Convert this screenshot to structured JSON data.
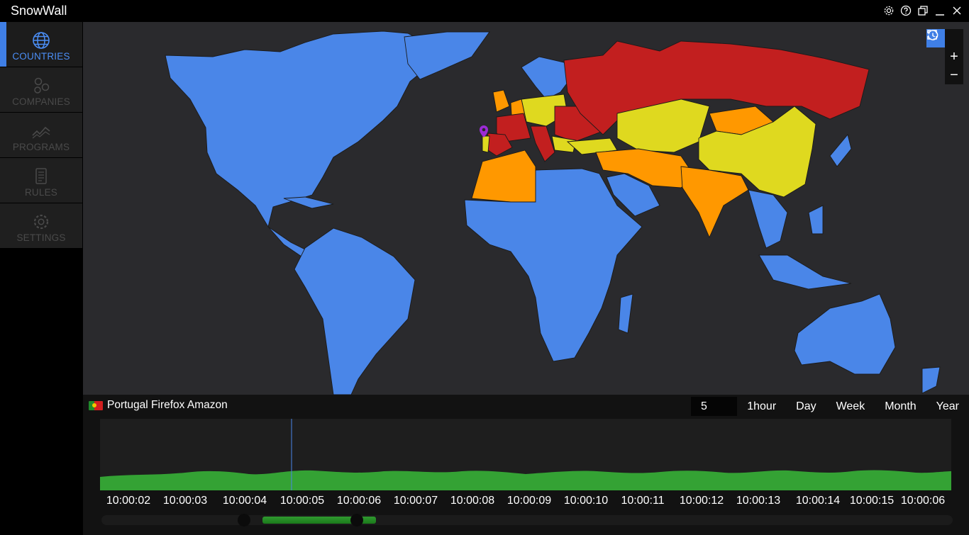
{
  "app": {
    "title": "SnowWall"
  },
  "window_controls": [
    "gear-icon",
    "help-icon",
    "restore-icon",
    "minimize-icon",
    "close-icon"
  ],
  "sidebar": {
    "items": [
      {
        "label": "COUNTRIES",
        "icon": "globe-icon",
        "active": true
      },
      {
        "label": "COMPANIES",
        "icon": "companies-icon",
        "active": false
      },
      {
        "label": "PROGRAMS",
        "icon": "programs-icon",
        "active": false
      },
      {
        "label": "RULES",
        "icon": "rules-icon",
        "active": false
      },
      {
        "label": "SETTINGS",
        "icon": "settings-icon",
        "active": false
      }
    ]
  },
  "map": {
    "controls": {
      "history": "history-icon",
      "fullscreen": "fullscreen-icon",
      "zoom_in": "+",
      "zoom_out": "−"
    },
    "colors": {
      "background": "#2a2a2d",
      "low": "#4a86e8",
      "medium": "#dfd91f",
      "high": "#ff9800",
      "very_high": "#c21f1f",
      "marker": "#9c2bd6"
    }
  },
  "selection": {
    "label": "Portugal Firefox Amazon",
    "flag": "portugal-flag"
  },
  "time_ranges": [
    {
      "label": "5 min",
      "active": true
    },
    {
      "label": "1hour",
      "active": false
    },
    {
      "label": "Day",
      "active": false
    },
    {
      "label": "Week",
      "active": false
    },
    {
      "label": "Month",
      "active": false
    },
    {
      "label": "Year",
      "active": false
    }
  ],
  "timeline": {
    "ticks": [
      "10:00:02",
      "10:00:03",
      "10:00:04",
      "10:00:05",
      "10:00:06",
      "10:00:07",
      "10:00:08",
      "10:00:09",
      "10:00:10",
      "10:00:11",
      "10:00:12",
      "10:00:13",
      "10:00:14",
      "10:00:15",
      "10:00:06"
    ],
    "cursor_time": "10:00:05",
    "color": "#34a234"
  }
}
